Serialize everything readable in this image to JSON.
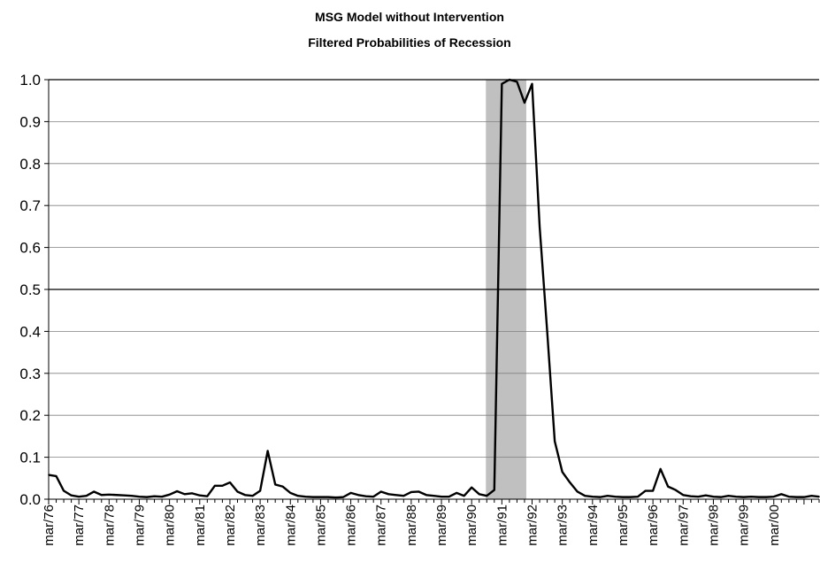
{
  "chart_data": {
    "type": "line",
    "title": "MSG Model without Intervention",
    "subtitle": "Filtered Probabilities of Recession",
    "xlabel": "",
    "ylabel": "",
    "ylim": [
      0,
      1
    ],
    "yticks": [
      "0.0",
      "0.1",
      "0.2",
      "0.3",
      "0.4",
      "0.5",
      "0.6",
      "0.7",
      "0.8",
      "0.9",
      "1.0"
    ],
    "x_tick_labels": [
      "mar/76",
      "mar/77",
      "mar/78",
      "mar/79",
      "mar/80",
      "mar/81",
      "mar/82",
      "mar/83",
      "mar/84",
      "mar/85",
      "mar/86",
      "mar/87",
      "mar/88",
      "mar/89",
      "mar/90",
      "mar/91",
      "mar/92",
      "mar/93",
      "mar/94",
      "mar/95",
      "mar/96",
      "mar/97",
      "mar/98",
      "mar/99",
      "mar/00"
    ],
    "x_start": "1976 Q1",
    "frequency": "quarterly",
    "grid": true,
    "reference_line": 0.5,
    "shaded_recession": [
      "1990 Q3",
      "1991 Q4"
    ],
    "colors": {
      "line": "#000000",
      "shade": "#c0c0c0",
      "grid": "#808080"
    },
    "series": [
      {
        "values": [
          0.058,
          0.055,
          0.02,
          0.009,
          0.006,
          0.008,
          0.018,
          0.01,
          0.011,
          0.01,
          0.009,
          0.008,
          0.006,
          0.005,
          0.007,
          0.006,
          0.011,
          0.019,
          0.012,
          0.014,
          0.009,
          0.007,
          0.032,
          0.032,
          0.04,
          0.018,
          0.01,
          0.008,
          0.02,
          0.115,
          0.035,
          0.03,
          0.015,
          0.008,
          0.006,
          0.005,
          0.005,
          0.005,
          0.004,
          0.005,
          0.015,
          0.01,
          0.007,
          0.006,
          0.018,
          0.012,
          0.01,
          0.008,
          0.017,
          0.018,
          0.01,
          0.008,
          0.006,
          0.006,
          0.015,
          0.008,
          0.028,
          0.012,
          0.008,
          0.022,
          0.99,
          1.0,
          0.995,
          0.945,
          0.99,
          0.65,
          0.4,
          0.138,
          0.065,
          0.04,
          0.018,
          0.008,
          0.006,
          0.005,
          0.008,
          0.006,
          0.005,
          0.005,
          0.006,
          0.02,
          0.02,
          0.072,
          0.03,
          0.022,
          0.01,
          0.007,
          0.006,
          0.009,
          0.006,
          0.005,
          0.008,
          0.006,
          0.005,
          0.006,
          0.005,
          0.005,
          0.006,
          0.012,
          0.006,
          0.005,
          0.005,
          0.008,
          0.006
        ]
      }
    ]
  }
}
